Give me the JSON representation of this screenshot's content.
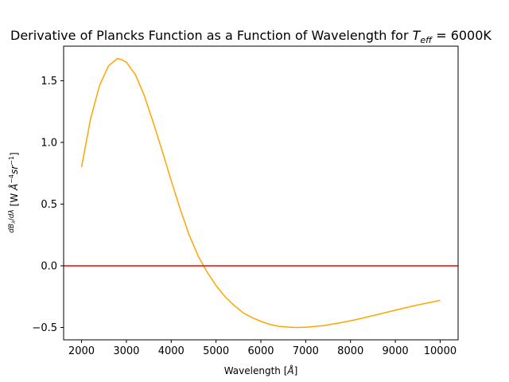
{
  "chart_data": {
    "type": "line",
    "title": "Derivative of Plancks Function as a Function of Wavelength for ",
    "title_math_symbol": "T",
    "title_math_subscript": "eff",
    "title_math_rest": " = 6000K",
    "xlabel": "Wavelength [Å]",
    "ylabel": "dBλ/dλ [W Å⁻⁴ sr⁻¹]",
    "xlim": [
      1600,
      10400
    ],
    "ylim": [
      -0.6,
      1.78
    ],
    "grid": false,
    "x_ticks": [
      2000,
      3000,
      4000,
      5000,
      6000,
      7000,
      8000,
      9000,
      10000
    ],
    "x_tick_labels": [
      "2000",
      "3000",
      "4000",
      "5000",
      "6000",
      "7000",
      "8000",
      "9000",
      "10000"
    ],
    "y_ticks": [
      -0.5,
      0.0,
      0.5,
      1.0,
      1.5
    ],
    "y_tick_labels": [
      "−0.5",
      "0.0",
      "0.5",
      "1.0",
      "1.5"
    ],
    "series": [
      {
        "color": "#ffa500",
        "x": [
          2000,
          2200,
          2400,
          2600,
          2800,
          2900,
          3000,
          3200,
          3400,
          3600,
          3800,
          4000,
          4200,
          4400,
          4600,
          4800,
          5000,
          5200,
          5400,
          5600,
          5800,
          6000,
          6200,
          6400,
          6600,
          6800,
          7000,
          7400,
          7800,
          8200,
          8600,
          9000,
          9400,
          9800,
          10000
        ],
        "y": [
          0.8,
          1.19,
          1.46,
          1.62,
          1.68,
          1.67,
          1.65,
          1.55,
          1.38,
          1.16,
          0.93,
          0.69,
          0.46,
          0.25,
          0.08,
          -0.05,
          -0.16,
          -0.25,
          -0.32,
          -0.38,
          -0.42,
          -0.45,
          -0.475,
          -0.49,
          -0.497,
          -0.5,
          -0.498,
          -0.485,
          -0.46,
          -0.43,
          -0.395,
          -0.36,
          -0.325,
          -0.295,
          -0.28
        ]
      },
      {
        "color": "#ff0000",
        "x": [
          1600,
          10400
        ],
        "y": [
          0.0,
          0.0
        ]
      }
    ]
  }
}
